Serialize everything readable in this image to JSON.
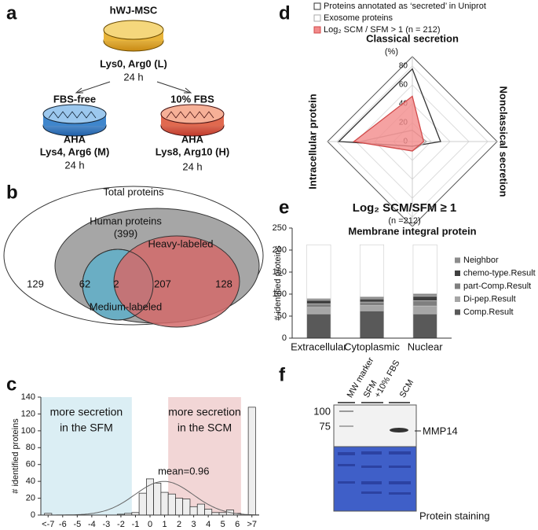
{
  "panel_labels": [
    "a",
    "b",
    "c",
    "d",
    "e",
    "f"
  ],
  "diagram_a": {
    "source": "hWJ-MSC",
    "source_label": "Lys0, Arg0 (L)",
    "source_time": "24 h",
    "branches": [
      {
        "condition": "FBS-free",
        "treatment": "AHA",
        "label": "Lys4, Arg6 (M)",
        "time": "24 h"
      },
      {
        "condition": "10% FBS",
        "treatment": "AHA",
        "label": "Lys8, Arg10 (H)",
        "time": "24 h"
      }
    ]
  },
  "venn_b": {
    "total_label": "Total proteins",
    "human_label": "Human proteins",
    "human_count": "(399)",
    "heavy_label": "Heavy-labeled",
    "medium_label": "Medium-labeled",
    "counts": {
      "non_human": 129,
      "human_only": 62,
      "medium_only": 2,
      "both": 207,
      "heavy_only": 128
    }
  },
  "chart_data": [
    {
      "type": "histogram",
      "ylabel": "# identified proteins",
      "color": "#eeeeee",
      "bins": [
        -7.25,
        -6.75,
        -6.25,
        -5.75,
        -5.25,
        -4.75,
        -4.25,
        -3.75,
        -3.25,
        -2.75,
        -2.25,
        -1.75,
        -1.25,
        -0.75,
        -0.25,
        0.25,
        0.75,
        1.25,
        1.75,
        2.25,
        2.75,
        3.25,
        3.75,
        4.25,
        4.75,
        5.25,
        5.75,
        6.25,
        6.75,
        7.25
      ],
      "values": [
        2,
        0,
        0,
        0,
        0,
        0,
        0,
        0,
        0,
        0,
        1,
        2,
        3,
        26,
        43,
        38,
        27,
        25,
        20,
        19,
        10,
        13,
        7,
        3,
        3,
        6,
        2,
        0,
        128
      ],
      "xlim": [
        -7.5,
        7.5
      ],
      "xticks": [
        {
          "value": -7,
          "label": "<-7"
        },
        -6,
        -5,
        -4,
        -3,
        -2,
        -1,
        0,
        1,
        2,
        3,
        4,
        5,
        6,
        {
          "value": 7,
          "label": ">7"
        }
      ],
      "ylim": [
        0,
        140
      ],
      "yticks": [
        0,
        20,
        40,
        60,
        80,
        100,
        120,
        140
      ],
      "shaded": [
        {
          "from": -7.5,
          "to": -1.25,
          "color": "#dbeef4",
          "text": [
            "more secretion",
            "in the SFM"
          ]
        },
        {
          "from": 1.25,
          "to": 6.25,
          "color": "#f2d6d6",
          "text": [
            "more secretion",
            "in the SCM"
          ]
        }
      ],
      "fit": {
        "mean": 0.96,
        "sd": 2,
        "peak": 40,
        "label": "mean=0.96"
      }
    },
    {
      "type": "radar",
      "unit": "(%)",
      "axes": [
        "Classical secretion",
        "Nonclassical secretion",
        "Membrane integral protein",
        "Intracellular protein"
      ],
      "rlim": [
        0,
        90
      ],
      "rticks": [
        0,
        20,
        40,
        60,
        80
      ],
      "series": [
        {
          "name": "Proteins annotated as ‘secreted’ in Uniprot",
          "color": "#333333",
          "filled": false,
          "values": [
            77,
            30,
            5,
            78
          ]
        },
        {
          "name": "Exosome proteins",
          "color": "#aaaaaa",
          "filled": false,
          "values": [
            12,
            15,
            10,
            55
          ]
        },
        {
          "name": "Log₂ SCM / SFM > 1 (n = 212)",
          "color": "#f28b8b",
          "filled": true,
          "values": [
            48,
            12,
            10,
            62
          ]
        }
      ]
    },
    {
      "type": "stacked_bar",
      "title": "Log₂ SCM/SFM ≥ 1",
      "subtitle": "(n =212)",
      "ylabel": "# identified proteins",
      "categories": [
        "Extracellular",
        "Cytoplasmic",
        "Nuclear"
      ],
      "ylim": [
        0,
        250
      ],
      "yticks": [
        0,
        50,
        100,
        150,
        200,
        250
      ],
      "series": [
        {
          "name": "Comp.Result",
          "color": "#595959",
          "values": [
            55,
            62,
            55
          ]
        },
        {
          "name": "Di-pep.Result",
          "color": "#a6a6a6",
          "values": [
            15,
            12,
            18
          ]
        },
        {
          "name": "part-Comp.Result",
          "color": "#7f7f7f",
          "values": [
            8,
            8,
            12
          ]
        },
        {
          "name": "chemo-type.Result",
          "color": "#404040",
          "values": [
            8,
            7,
            10
          ]
        },
        {
          "name": "Neighbor",
          "color": "#8c8c8c",
          "values": [
            4,
            5,
            6
          ]
        },
        {
          "color": "#ffffff",
          "values": [
            122,
            118,
            111
          ]
        }
      ]
    }
  ],
  "gel_f": {
    "lanes": [
      [
        "MW marker"
      ],
      [
        "SFM",
        "+10% FBS"
      ],
      [
        "SCM"
      ]
    ],
    "markers": [
      100,
      75
    ],
    "band": "MMP14",
    "caption": "Protein staining"
  }
}
